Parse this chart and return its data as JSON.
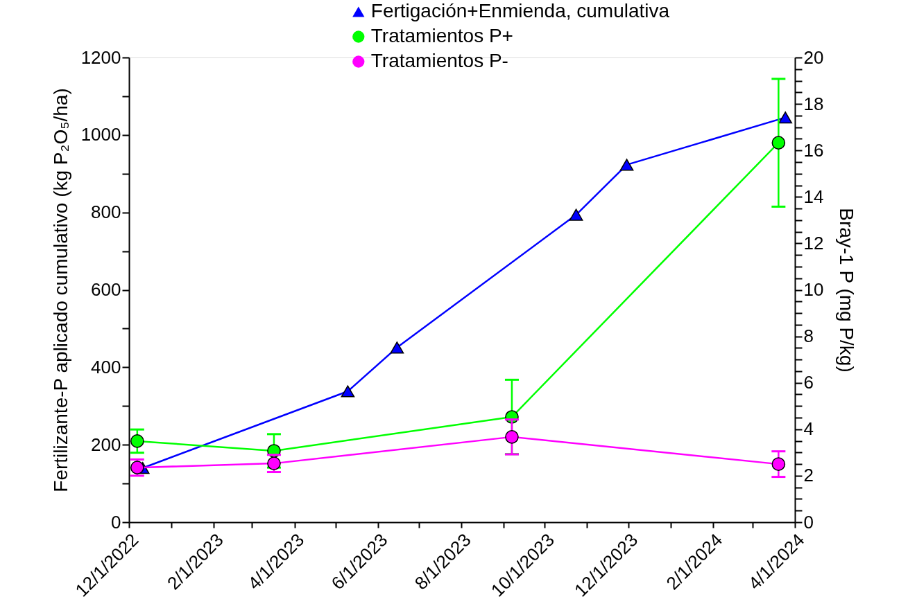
{
  "chart_data": {
    "type": "line",
    "ylabel": "Fertilizante-P aplicado cumulativo (kg P₂O₅/ha)",
    "y2label": "Bray-1 P (mg P/kg)",
    "xlim": [
      "2022-12-01",
      "2024-04-01"
    ],
    "xticks": [
      {
        "value": "2022-12-01",
        "label": "12/1/2022"
      },
      {
        "value": "2023-01-01",
        "label": null
      },
      {
        "value": "2023-02-01",
        "label": "2/1/2023"
      },
      {
        "value": "2023-03-01",
        "label": null
      },
      {
        "value": "2023-04-01",
        "label": "4/1/2023"
      },
      {
        "value": "2023-05-01",
        "label": null
      },
      {
        "value": "2023-06-01",
        "label": "6/1/2023"
      },
      {
        "value": "2023-07-01",
        "label": null
      },
      {
        "value": "2023-08-01",
        "label": "8/1/2023"
      },
      {
        "value": "2023-09-01",
        "label": null
      },
      {
        "value": "2023-10-01",
        "label": "10/1/2023"
      },
      {
        "value": "2023-11-01",
        "label": null
      },
      {
        "value": "2023-12-01",
        "label": "12/1/2023"
      },
      {
        "value": "2024-01-01",
        "label": null
      },
      {
        "value": "2024-02-01",
        "label": "2/1/2024"
      },
      {
        "value": "2024-03-01",
        "label": null
      },
      {
        "value": "2024-04-01",
        "label": "4/1/2024"
      }
    ],
    "ylim": [
      0,
      1200
    ],
    "yticks": [
      0,
      {
        "value": 100,
        "label": null
      },
      200,
      {
        "value": 300,
        "label": null
      },
      400,
      {
        "value": 500,
        "label": null
      },
      600,
      {
        "value": 700,
        "label": null
      },
      800,
      {
        "value": 900,
        "label": null
      },
      1000,
      {
        "value": 1100,
        "label": null
      },
      1200
    ],
    "y2lim": [
      0,
      20
    ],
    "y2ticks": [
      0,
      {
        "value": 0.5,
        "label": null
      },
      {
        "value": 1,
        "label": null
      },
      {
        "value": 1.5,
        "label": null
      },
      2,
      {
        "value": 2.5,
        "label": null
      },
      {
        "value": 3,
        "label": null
      },
      {
        "value": 3.5,
        "label": null
      },
      4,
      {
        "value": 4.5,
        "label": null
      },
      {
        "value": 5,
        "label": null
      },
      {
        "value": 5.5,
        "label": null
      },
      6,
      {
        "value": 6.5,
        "label": null
      },
      {
        "value": 7,
        "label": null
      },
      {
        "value": 7.5,
        "label": null
      },
      8,
      {
        "value": 8.5,
        "label": null
      },
      {
        "value": 9,
        "label": null
      },
      {
        "value": 9.5,
        "label": null
      },
      10,
      {
        "value": 10.5,
        "label": null
      },
      {
        "value": 11,
        "label": null
      },
      {
        "value": 11.5,
        "label": null
      },
      12,
      {
        "value": 12.5,
        "label": null
      },
      {
        "value": 13,
        "label": null
      },
      {
        "value": 13.5,
        "label": null
      },
      14,
      {
        "value": 14.5,
        "label": null
      },
      {
        "value": 15,
        "label": null
      },
      {
        "value": 15.5,
        "label": null
      },
      16,
      {
        "value": 16.5,
        "label": null
      },
      {
        "value": 17,
        "label": null
      },
      {
        "value": 17.5,
        "label": null
      },
      18,
      {
        "value": 18.5,
        "label": null
      },
      {
        "value": 19,
        "label": null
      },
      {
        "value": 19.5,
        "label": null
      },
      20
    ],
    "legend": "top",
    "grid": false,
    "line_style": "solid",
    "series": [
      {
        "name": "Fertigación+Enmienda, cumulativa",
        "color": "#0000ff",
        "marker": "triangle",
        "x": [
          "2022-12-11",
          "2023-05-10",
          "2023-06-15",
          "2023-10-24",
          "2023-11-30",
          "2024-03-25"
        ],
        "values": [
          140,
          338,
          451,
          794,
          923,
          1045
        ]
      },
      {
        "name": "Tratamientos P+",
        "color": "#00ff00",
        "marker": "circle",
        "axis": "y2",
        "x": [
          "2022-12-07",
          "2023-03-17",
          "2023-09-07",
          "2024-03-20"
        ],
        "values": [
          3.49,
          3.07,
          4.53,
          16.33
        ],
        "errors": [
          0.5,
          0.72,
          1.6,
          2.75
        ]
      },
      {
        "name": "Tratamientos P-",
        "color": "#ff00ff",
        "marker": "circle",
        "axis": "y2",
        "x": [
          "2022-12-07",
          "2023-03-17",
          "2023-09-07",
          "2024-03-20"
        ],
        "values": [
          2.35,
          2.53,
          3.67,
          2.5
        ],
        "errors": [
          0.35,
          0.37,
          0.75,
          0.55
        ]
      }
    ]
  }
}
